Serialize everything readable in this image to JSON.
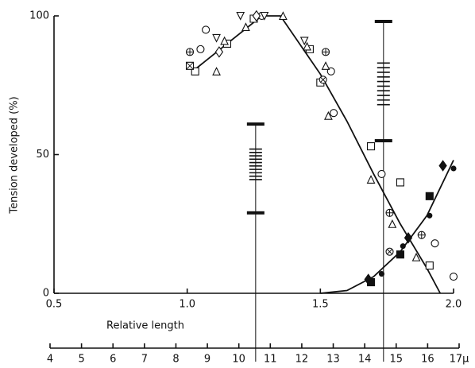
{
  "chart_data": {
    "type": "scatter",
    "y_label": "Tension developed (%)",
    "x_label": "Relative length",
    "xlim": [
      0.5,
      2.0
    ],
    "xticks": [
      0.5,
      {
        "value": 1,
        "label": "1.0"
      },
      1.5,
      {
        "value": 2,
        "label": "2.0"
      }
    ],
    "ylim": [
      0,
      100
    ],
    "yticks": [
      0,
      50,
      100
    ],
    "x2lim": [
      4,
      17
    ],
    "x2ticks": [
      4,
      5,
      6,
      7,
      8,
      9,
      10,
      11,
      12,
      13,
      14,
      15,
      16,
      {
        "value": 17,
        "label": "17μ"
      }
    ],
    "color": "#111111",
    "series": [
      {
        "marker": "circle",
        "x": [
          1.07,
          1.05,
          1.28,
          1.54,
          1.55,
          1.73,
          1.93,
          2.0
        ],
        "values": [
          95,
          88,
          100,
          80,
          65,
          43,
          18,
          6
        ]
      },
      {
        "marker": "square",
        "x": [
          1.03,
          1.15,
          1.25,
          1.46,
          1.5,
          1.69,
          1.8,
          1.91
        ],
        "values": [
          80,
          90,
          99,
          88,
          76,
          53,
          40,
          10
        ]
      },
      {
        "marker": "triangle",
        "x": [
          1.11,
          1.14,
          1.22,
          1.36,
          1.45,
          1.52,
          1.53,
          1.69,
          1.77,
          1.86
        ],
        "values": [
          80,
          91,
          96,
          100,
          89,
          82,
          64,
          41,
          25,
          13
        ]
      },
      {
        "marker": "triangle-down",
        "x": [
          1.11,
          1.2,
          1.29,
          1.44
        ],
        "values": [
          92,
          100,
          100,
          91
        ]
      },
      {
        "marker": "diamond",
        "x": [
          1.12,
          1.26
        ],
        "values": [
          87,
          100
        ]
      },
      {
        "marker": "circle-plus",
        "x": [
          1.01,
          1.52,
          1.76,
          1.88
        ],
        "values": [
          87,
          87,
          29,
          21
        ]
      },
      {
        "marker": "circle-x",
        "x": [
          1.51,
          1.76
        ],
        "values": [
          77,
          15
        ]
      },
      {
        "marker": "square-x",
        "x": [
          1.01
        ],
        "values": [
          82
        ]
      },
      {
        "marker": "filled-circle",
        "x": [
          1.73,
          1.81,
          1.91,
          2.0
        ],
        "values": [
          7,
          17,
          28,
          45
        ]
      },
      {
        "marker": "filled-square",
        "x": [
          1.69,
          1.8,
          1.91
        ],
        "values": [
          4,
          14,
          35
        ]
      },
      {
        "marker": "filled-diamond",
        "x": [
          1.68,
          1.83,
          1.96
        ],
        "values": [
          5,
          20,
          46
        ]
      }
    ],
    "curves": [
      {
        "x": [
          1.02,
          1.28,
          1.35,
          1.5,
          1.6,
          1.7,
          1.8,
          1.9,
          1.95
        ],
        "values": [
          80,
          100,
          100,
          79,
          62,
          43,
          25,
          9,
          0
        ]
      },
      {
        "x": [
          1.5,
          1.6,
          1.7,
          1.8,
          1.9,
          2.0
        ],
        "values": [
          0,
          1,
          6,
          15,
          28,
          48
        ]
      }
    ],
    "range_bars": [
      {
        "x": 1.257,
        "low": 29,
        "high": 61,
        "band_low": 41,
        "band_high": 52
      },
      {
        "x": 1.737,
        "low": 55,
        "high": 98,
        "band_low": 68,
        "band_high": 83
      }
    ]
  }
}
